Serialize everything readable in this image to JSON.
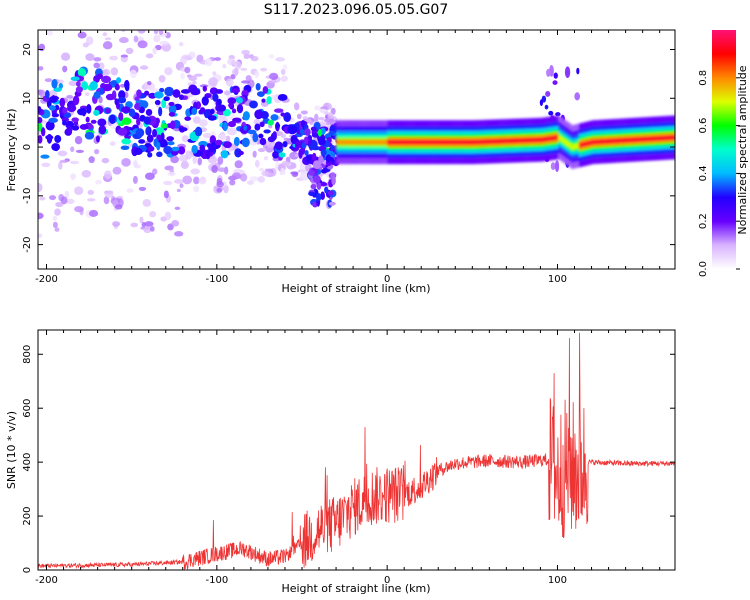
{
  "title": "S117.2023.096.05.05.G07",
  "colors": {
    "snr_line": "#ee3333",
    "axes": "#000000"
  },
  "chart_data": [
    {
      "type": "heatmap",
      "xlabel": "Height of straight line (km)",
      "ylabel": "Frequency (Hz)",
      "xlim": [
        -205,
        169
      ],
      "ylim": [
        -25,
        24
      ],
      "xticks": [
        -200,
        -100,
        0,
        100
      ],
      "yticks": [
        -20,
        -10,
        0,
        10,
        20
      ],
      "colorbar": {
        "label": "Normalized spectral amplitude",
        "range": [
          0,
          1
        ],
        "ticks": [
          0.0,
          0.2,
          0.4,
          0.6,
          0.8
        ],
        "colormap": [
          "#ffffff",
          "#d9b3ff",
          "#6600ff",
          "#2200ff",
          "#00bbff",
          "#00ffcc",
          "#00ff00",
          "#ddff00",
          "#ff8800",
          "#ff0000",
          "#ff1177"
        ]
      },
      "ridge": [
        {
          "x": -200,
          "y": 5
        },
        {
          "x": -180,
          "y": 10
        },
        {
          "x": -160,
          "y": 7
        },
        {
          "x": -140,
          "y": 5
        },
        {
          "x": -120,
          "y": 5
        },
        {
          "x": -100,
          "y": 5
        },
        {
          "x": -80,
          "y": 6
        },
        {
          "x": -65,
          "y": 5
        },
        {
          "x": -55,
          "y": 2
        },
        {
          "x": -45,
          "y": 0
        },
        {
          "x": -35,
          "y": 1
        },
        {
          "x": -25,
          "y": 1
        },
        {
          "x": 0,
          "y": 1
        },
        {
          "x": 50,
          "y": 1
        },
        {
          "x": 90,
          "y": 1.5
        },
        {
          "x": 100,
          "y": 2
        },
        {
          "x": 108,
          "y": 0
        },
        {
          "x": 120,
          "y": 1
        },
        {
          "x": 169,
          "y": 2
        }
      ]
    },
    {
      "type": "line",
      "xlabel": "Height of straight line (km)",
      "ylabel": "SNR (10 * v/v)",
      "xlim": [
        -205,
        169
      ],
      "ylim": [
        0,
        890
      ],
      "xticks": [
        -200,
        -100,
        0,
        100
      ],
      "yticks": [
        0,
        200,
        400,
        600,
        800
      ],
      "envelope": [
        {
          "x": -205,
          "y": 15
        },
        {
          "x": -150,
          "y": 20
        },
        {
          "x": -120,
          "y": 30
        },
        {
          "x": -100,
          "y": 60
        },
        {
          "x": -85,
          "y": 80
        },
        {
          "x": -70,
          "y": 40
        },
        {
          "x": -60,
          "y": 50
        },
        {
          "x": -50,
          "y": 100
        },
        {
          "x": -40,
          "y": 150
        },
        {
          "x": -30,
          "y": 170
        },
        {
          "x": -20,
          "y": 230
        },
        {
          "x": -10,
          "y": 270
        },
        {
          "x": 0,
          "y": 280
        },
        {
          "x": 10,
          "y": 280
        },
        {
          "x": 20,
          "y": 310
        },
        {
          "x": 30,
          "y": 370
        },
        {
          "x": 40,
          "y": 395
        },
        {
          "x": 60,
          "y": 405
        },
        {
          "x": 80,
          "y": 400
        },
        {
          "x": 95,
          "y": 410
        },
        {
          "x": 100,
          "y": 350
        },
        {
          "x": 105,
          "y": 380
        },
        {
          "x": 112,
          "y": 370
        },
        {
          "x": 118,
          "y": 400
        },
        {
          "x": 140,
          "y": 395
        },
        {
          "x": 169,
          "y": 395
        }
      ],
      "peaks": [
        {
          "x": -102,
          "y": 185
        },
        {
          "x": -13,
          "y": 530
        },
        {
          "x": 98,
          "y": 730
        },
        {
          "x": 107,
          "y": 860
        },
        {
          "x": 113,
          "y": 880
        }
      ]
    }
  ]
}
